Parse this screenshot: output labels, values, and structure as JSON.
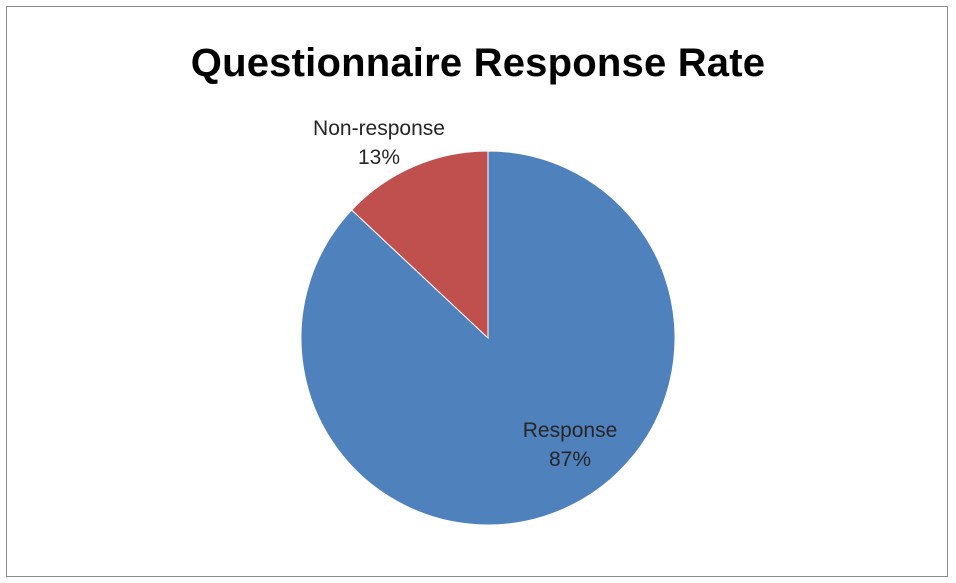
{
  "chart_data": {
    "type": "pie",
    "title": "Questionnaire Response Rate",
    "slices": [
      {
        "label": "Response",
        "value": 87,
        "value_label": "87%",
        "color": "#4F81BD"
      },
      {
        "label": "Non-response",
        "value": 13,
        "value_label": "13%",
        "color": "#C0504D"
      }
    ],
    "start_angle_deg": 0,
    "direction": "clockwise",
    "legend": "none",
    "data_labels": "category-and-percent"
  }
}
